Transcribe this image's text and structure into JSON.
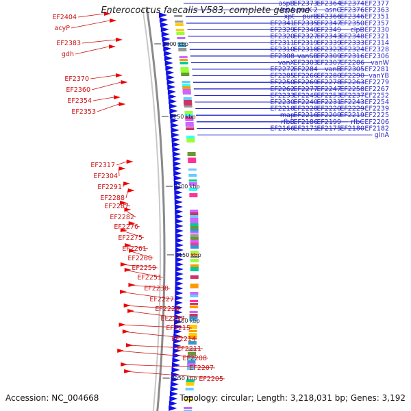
{
  "header": {
    "title": "Enterococcus faecalis V583, complete genome"
  },
  "footer": {
    "accession": "Accession: NC_004668",
    "summary": "Topology: circular; Length: 3,218,031 bp; Genes: 3,192"
  },
  "ticks": [
    "2300 kbp",
    "2250 kbp",
    "2200 kbp",
    "2150 kbp",
    "2100 kbp",
    "2050 kbp"
  ],
  "left_labels": [
    "EF2404",
    "acyP",
    "EF2383",
    "gdh",
    "EF2370",
    "EF2360",
    "EF2354",
    "EF2353",
    "EF2317",
    "EF2304",
    "EF2291",
    "EF2288",
    "EF2287",
    "EF2282",
    "EF2276",
    "EF2275",
    "EF2261",
    "EF2260",
    "EF2259",
    "EF2251",
    "EF2238",
    "EF2227",
    "EF2226",
    "EF2217",
    "EF2215",
    "EF2214",
    "EF2211",
    "EF2208",
    "EF2207",
    "EF2205"
  ],
  "right_labels": [
    "EF2377",
    "EF2374",
    "EF2364",
    "EF2373",
    "aspB",
    "EF2363",
    "EF2376",
    "asnC",
    "purK-2",
    "lepA",
    "EF2351",
    "EF2346",
    "EF2366",
    "purB",
    "xpt",
    "EF2357",
    "EF2350",
    "EF2347",
    "EF2335",
    "EF2341",
    "EF2330",
    "clpB",
    "EF2349",
    "EF2340",
    "EF2329",
    "EF2321",
    "EF2348",
    "EF2343",
    "EF2327",
    "EF2320",
    "EF2314",
    "EF2333",
    "EF2339",
    "EF2319",
    "EF2311",
    "EF2328",
    "EF2324",
    "EF2322",
    "EF2318",
    "EF2310",
    "EF2306",
    "EF2316",
    "EF2309",
    "vanSB",
    "EF2308",
    "vanW",
    "EF2286",
    "EF2307",
    "EF2303",
    "vanX",
    "EF2281",
    "EF2305",
    "vanB",
    "EF2284",
    "EF2272",
    "vanYB",
    "EF2290",
    "EF2280",
    "EF2266",
    "EF2285",
    "EF2279",
    "EF2263",
    "EF2278",
    "EF2269",
    "EF2250",
    "EF2267",
    "EF2258",
    "EF2247",
    "EF2277",
    "EF2262",
    "EF2252",
    "EF2237",
    "EF2253",
    "EF2245",
    "EF2233",
    "EF2254",
    "EF2243",
    "EF2231",
    "EF2240",
    "EF2230",
    "EF2239",
    "EF2229",
    "EF2220",
    "EF2228",
    "EF2218",
    "EF2225",
    "EF2219",
    "EF2209",
    "EF2216",
    "map",
    "EF2206",
    "rfbC",
    "EF2199",
    "EF2186",
    "rfbB",
    "EF2182",
    "EF2180",
    "EF2175",
    "EF2171",
    "EF2166",
    "glnA"
  ]
}
